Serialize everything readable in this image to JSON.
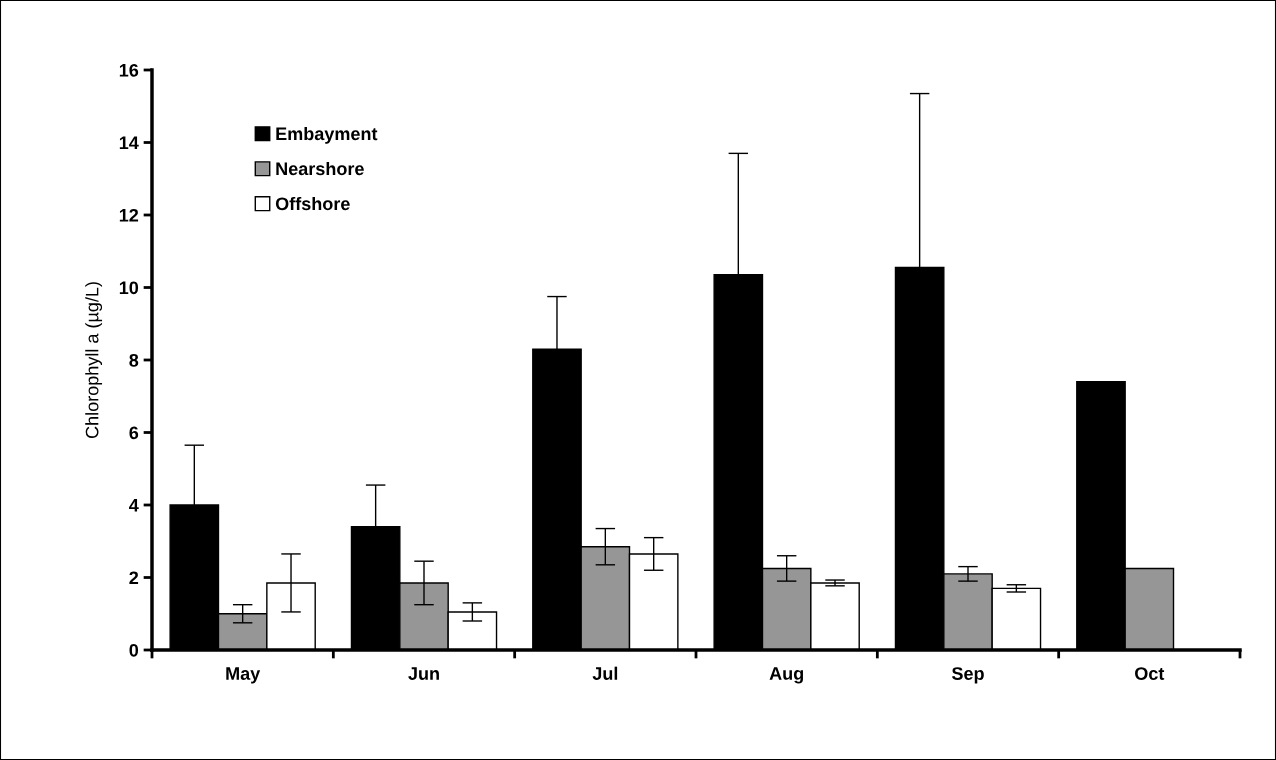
{
  "chart_data": {
    "type": "bar",
    "ylabel": "Chlorophyll a (µg/L)",
    "categories": [
      "May",
      "Jun",
      "Jul",
      "Aug",
      "Sep",
      "Oct"
    ],
    "series": [
      {
        "name": "Embayment",
        "color": "#000000",
        "values": [
          4.0,
          3.4,
          8.3,
          10.35,
          10.55,
          7.4
        ],
        "errors": [
          1.65,
          1.15,
          1.45,
          3.35,
          4.8,
          null
        ]
      },
      {
        "name": "Nearshore",
        "color": "#969696",
        "values": [
          1.0,
          1.85,
          2.85,
          2.25,
          2.1,
          2.25
        ],
        "errors": [
          0.25,
          0.6,
          0.5,
          0.35,
          0.2,
          null
        ]
      },
      {
        "name": "Offshore",
        "color": "#ffffff",
        "values": [
          1.85,
          1.05,
          2.65,
          1.85,
          1.7,
          null
        ],
        "errors": [
          0.8,
          0.25,
          0.45,
          0.08,
          0.1,
          null
        ]
      }
    ],
    "ylim": [
      0,
      16
    ],
    "yticks": [
      0,
      2,
      4,
      6,
      8,
      10,
      12,
      14,
      16
    ],
    "grid": false,
    "legend": "top left"
  }
}
